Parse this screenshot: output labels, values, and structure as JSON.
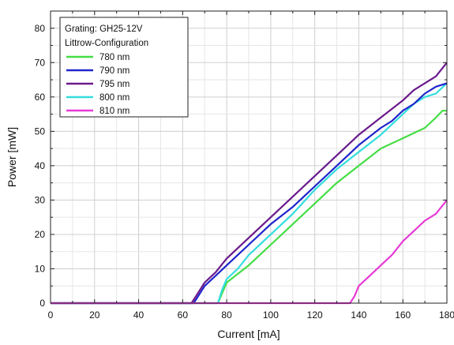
{
  "chart_data": {
    "type": "line",
    "xlabel": "Current [mA]",
    "ylabel": "Power [mW]",
    "xlim": [
      0,
      180
    ],
    "ylim": [
      0,
      85
    ],
    "xticks": [
      "0",
      "20",
      "40",
      "60",
      "80",
      "100",
      "120",
      "140",
      "160",
      "180"
    ],
    "yticks": [
      "0",
      "10",
      "20",
      "30",
      "40",
      "50",
      "60",
      "70",
      "80"
    ],
    "grid": true,
    "legend": {
      "placement": "top-left",
      "title_lines": [
        "Grating: GH25-12V",
        "Littrow-Configuration"
      ]
    },
    "series": [
      {
        "name": "780 nm",
        "color": "#44dd44",
        "x": [
          0,
          76,
          78,
          80,
          82,
          90,
          100,
          110,
          120,
          130,
          140,
          150,
          160,
          170,
          175,
          178,
          180
        ],
        "y": [
          0,
          0,
          3,
          6,
          7,
          11,
          17,
          23,
          29,
          35,
          40,
          45,
          48,
          51,
          54,
          56,
          56
        ]
      },
      {
        "name": "790 nm",
        "color": "#1f25cc",
        "x": [
          0,
          65,
          66,
          70,
          75,
          80,
          90,
          100,
          110,
          120,
          130,
          140,
          150,
          155,
          160,
          165,
          170,
          175,
          180
        ],
        "y": [
          0,
          0,
          1,
          5,
          8,
          11,
          17,
          23,
          28,
          34,
          40,
          46,
          51,
          53,
          56,
          58,
          61,
          63,
          64
        ]
      },
      {
        "name": "795 nm",
        "color": "#6a1a8c",
        "x": [
          0,
          64,
          66,
          70,
          75,
          80,
          90,
          100,
          110,
          120,
          130,
          140,
          150,
          160,
          165,
          170,
          175,
          180
        ],
        "y": [
          0,
          0,
          2,
          6,
          9,
          13,
          19,
          25,
          31,
          37,
          43,
          49,
          54,
          59,
          62,
          64,
          66,
          70
        ]
      },
      {
        "name": "800 nm",
        "color": "#33dddd",
        "x": [
          0,
          76,
          78,
          80,
          85,
          90,
          100,
          110,
          120,
          130,
          140,
          150,
          155,
          160,
          165,
          170,
          175,
          180
        ],
        "y": [
          0,
          0,
          4,
          7,
          10,
          14,
          20,
          26,
          33,
          39,
          44,
          49,
          52,
          55,
          58,
          60,
          61,
          64
        ]
      },
      {
        "name": "810 nm",
        "color": "#e63ad6",
        "x": [
          0,
          136,
          138,
          140,
          145,
          150,
          155,
          160,
          165,
          170,
          175,
          180
        ],
        "y": [
          0,
          0,
          2,
          5,
          8,
          11,
          14,
          18,
          21,
          24,
          26,
          30
        ]
      }
    ]
  }
}
